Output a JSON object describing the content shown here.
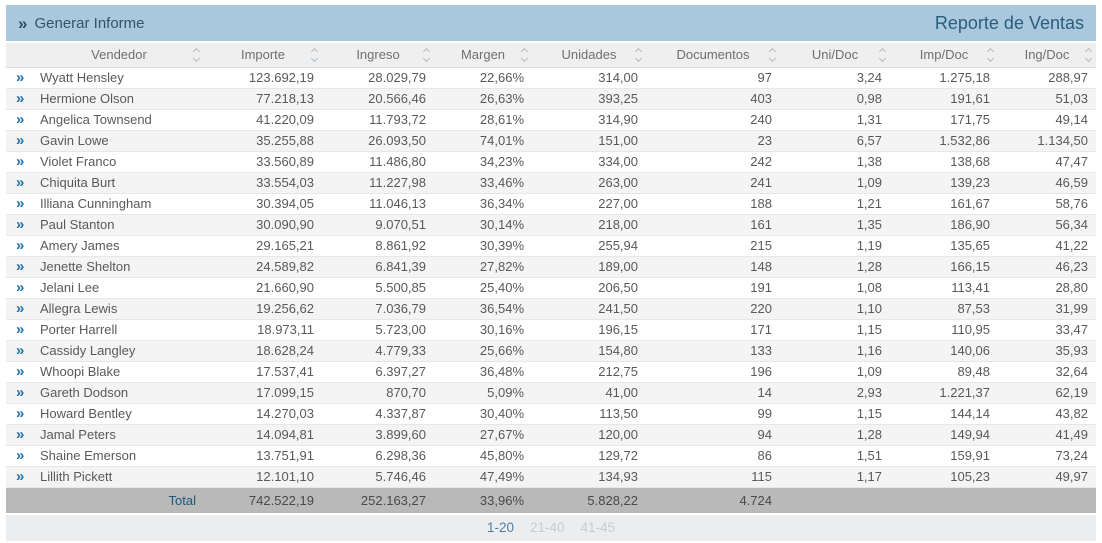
{
  "toolbar": {
    "generate_button_label": "Generar Informe",
    "generate_button_icon": "double-chevron-right",
    "title": "Reporte de Ventas"
  },
  "table": {
    "columns": [
      {
        "key": "vendedor",
        "label": "Vendedor",
        "align": "left",
        "sort_indicator": "none"
      },
      {
        "key": "importe",
        "label": "Importe",
        "align": "right",
        "sort_indicator": "desc"
      },
      {
        "key": "ingreso",
        "label": "Ingreso",
        "align": "right",
        "sort_indicator": "none"
      },
      {
        "key": "margen",
        "label": "Margen",
        "align": "right",
        "sort_indicator": "none"
      },
      {
        "key": "unidades",
        "label": "Unidades",
        "align": "right",
        "sort_indicator": "none"
      },
      {
        "key": "documentos",
        "label": "Documentos",
        "align": "right",
        "sort_indicator": "none"
      },
      {
        "key": "uni_doc",
        "label": "Uni/Doc",
        "align": "right",
        "sort_indicator": "none"
      },
      {
        "key": "imp_doc",
        "label": "Imp/Doc",
        "align": "right",
        "sort_indicator": "none"
      },
      {
        "key": "ing_doc",
        "label": "Ing/Doc",
        "align": "right",
        "sort_indicator": "none"
      }
    ],
    "row_expand_icon": "double-chevron-right",
    "rows": [
      {
        "vendedor": "Wyatt Hensley",
        "importe": "123.692,19",
        "ingreso": "28.029,79",
        "margen": "22,66%",
        "unidades": "314,00",
        "documentos": "97",
        "uni_doc": "3,24",
        "imp_doc": "1.275,18",
        "ing_doc": "288,97"
      },
      {
        "vendedor": "Hermione Olson",
        "importe": "77.218,13",
        "ingreso": "20.566,46",
        "margen": "26,63%",
        "unidades": "393,25",
        "documentos": "403",
        "uni_doc": "0,98",
        "imp_doc": "191,61",
        "ing_doc": "51,03"
      },
      {
        "vendedor": "Angelica Townsend",
        "importe": "41.220,09",
        "ingreso": "11.793,72",
        "margen": "28,61%",
        "unidades": "314,90",
        "documentos": "240",
        "uni_doc": "1,31",
        "imp_doc": "171,75",
        "ing_doc": "49,14"
      },
      {
        "vendedor": "Gavin Lowe",
        "importe": "35.255,88",
        "ingreso": "26.093,50",
        "margen": "74,01%",
        "unidades": "151,00",
        "documentos": "23",
        "uni_doc": "6,57",
        "imp_doc": "1.532,86",
        "ing_doc": "1.134,50"
      },
      {
        "vendedor": "Violet Franco",
        "importe": "33.560,89",
        "ingreso": "11.486,80",
        "margen": "34,23%",
        "unidades": "334,00",
        "documentos": "242",
        "uni_doc": "1,38",
        "imp_doc": "138,68",
        "ing_doc": "47,47"
      },
      {
        "vendedor": "Chiquita Burt",
        "importe": "33.554,03",
        "ingreso": "11.227,98",
        "margen": "33,46%",
        "unidades": "263,00",
        "documentos": "241",
        "uni_doc": "1,09",
        "imp_doc": "139,23",
        "ing_doc": "46,59"
      },
      {
        "vendedor": "Illiana Cunningham",
        "importe": "30.394,05",
        "ingreso": "11.046,13",
        "margen": "36,34%",
        "unidades": "227,00",
        "documentos": "188",
        "uni_doc": "1,21",
        "imp_doc": "161,67",
        "ing_doc": "58,76"
      },
      {
        "vendedor": "Paul Stanton",
        "importe": "30.090,90",
        "ingreso": "9.070,51",
        "margen": "30,14%",
        "unidades": "218,00",
        "documentos": "161",
        "uni_doc": "1,35",
        "imp_doc": "186,90",
        "ing_doc": "56,34"
      },
      {
        "vendedor": "Amery James",
        "importe": "29.165,21",
        "ingreso": "8.861,92",
        "margen": "30,39%",
        "unidades": "255,94",
        "documentos": "215",
        "uni_doc": "1,19",
        "imp_doc": "135,65",
        "ing_doc": "41,22"
      },
      {
        "vendedor": "Jenette Shelton",
        "importe": "24.589,82",
        "ingreso": "6.841,39",
        "margen": "27,82%",
        "unidades": "189,00",
        "documentos": "148",
        "uni_doc": "1,28",
        "imp_doc": "166,15",
        "ing_doc": "46,23"
      },
      {
        "vendedor": "Jelani Lee",
        "importe": "21.660,90",
        "ingreso": "5.500,85",
        "margen": "25,40%",
        "unidades": "206,50",
        "documentos": "191",
        "uni_doc": "1,08",
        "imp_doc": "113,41",
        "ing_doc": "28,80"
      },
      {
        "vendedor": "Allegra Lewis",
        "importe": "19.256,62",
        "ingreso": "7.036,79",
        "margen": "36,54%",
        "unidades": "241,50",
        "documentos": "220",
        "uni_doc": "1,10",
        "imp_doc": "87,53",
        "ing_doc": "31,99"
      },
      {
        "vendedor": "Porter Harrell",
        "importe": "18.973,11",
        "ingreso": "5.723,00",
        "margen": "30,16%",
        "unidades": "196,15",
        "documentos": "171",
        "uni_doc": "1,15",
        "imp_doc": "110,95",
        "ing_doc": "33,47"
      },
      {
        "vendedor": "Cassidy Langley",
        "importe": "18.628,24",
        "ingreso": "4.779,33",
        "margen": "25,66%",
        "unidades": "154,80",
        "documentos": "133",
        "uni_doc": "1,16",
        "imp_doc": "140,06",
        "ing_doc": "35,93"
      },
      {
        "vendedor": "Whoopi Blake",
        "importe": "17.537,41",
        "ingreso": "6.397,27",
        "margen": "36,48%",
        "unidades": "212,75",
        "documentos": "196",
        "uni_doc": "1,09",
        "imp_doc": "89,48",
        "ing_doc": "32,64"
      },
      {
        "vendedor": "Gareth Dodson",
        "importe": "17.099,15",
        "ingreso": "870,70",
        "margen": "5,09%",
        "unidades": "41,00",
        "documentos": "14",
        "uni_doc": "2,93",
        "imp_doc": "1.221,37",
        "ing_doc": "62,19"
      },
      {
        "vendedor": "Howard Bentley",
        "importe": "14.270,03",
        "ingreso": "4.337,87",
        "margen": "30,40%",
        "unidades": "113,50",
        "documentos": "99",
        "uni_doc": "1,15",
        "imp_doc": "144,14",
        "ing_doc": "43,82"
      },
      {
        "vendedor": "Jamal Peters",
        "importe": "14.094,81",
        "ingreso": "3.899,60",
        "margen": "27,67%",
        "unidades": "120,00",
        "documentos": "94",
        "uni_doc": "1,28",
        "imp_doc": "149,94",
        "ing_doc": "41,49"
      },
      {
        "vendedor": "Shaine Emerson",
        "importe": "13.751,91",
        "ingreso": "6.298,36",
        "margen": "45,80%",
        "unidades": "129,72",
        "documentos": "86",
        "uni_doc": "1,51",
        "imp_doc": "159,91",
        "ing_doc": "73,24"
      },
      {
        "vendedor": "Lillith Pickett",
        "importe": "12.101,10",
        "ingreso": "5.746,46",
        "margen": "47,49%",
        "unidades": "134,93",
        "documentos": "115",
        "uni_doc": "1,17",
        "imp_doc": "105,23",
        "ing_doc": "49,97"
      }
    ],
    "total_row": {
      "vendedor": "Total",
      "importe": "742.522,19",
      "ingreso": "252.163,27",
      "margen": "33,96%",
      "unidades": "5.828,22",
      "documentos": "4.724",
      "uni_doc": "",
      "imp_doc": "",
      "ing_doc": ""
    }
  },
  "pagination": {
    "pages": [
      {
        "label": "1-20",
        "active": true
      },
      {
        "label": "21-40",
        "active": false
      },
      {
        "label": "41-45",
        "active": false
      }
    ]
  },
  "colors": {
    "toolbar_background": "#aac8dd",
    "title_text": "#2b5d7d",
    "row_chevron_blue": "#1d71a9",
    "total_row_background": "#b9b9b9",
    "active_sort_indicator": "#9fc1dc",
    "pagination_active": "#4d7fa7"
  }
}
